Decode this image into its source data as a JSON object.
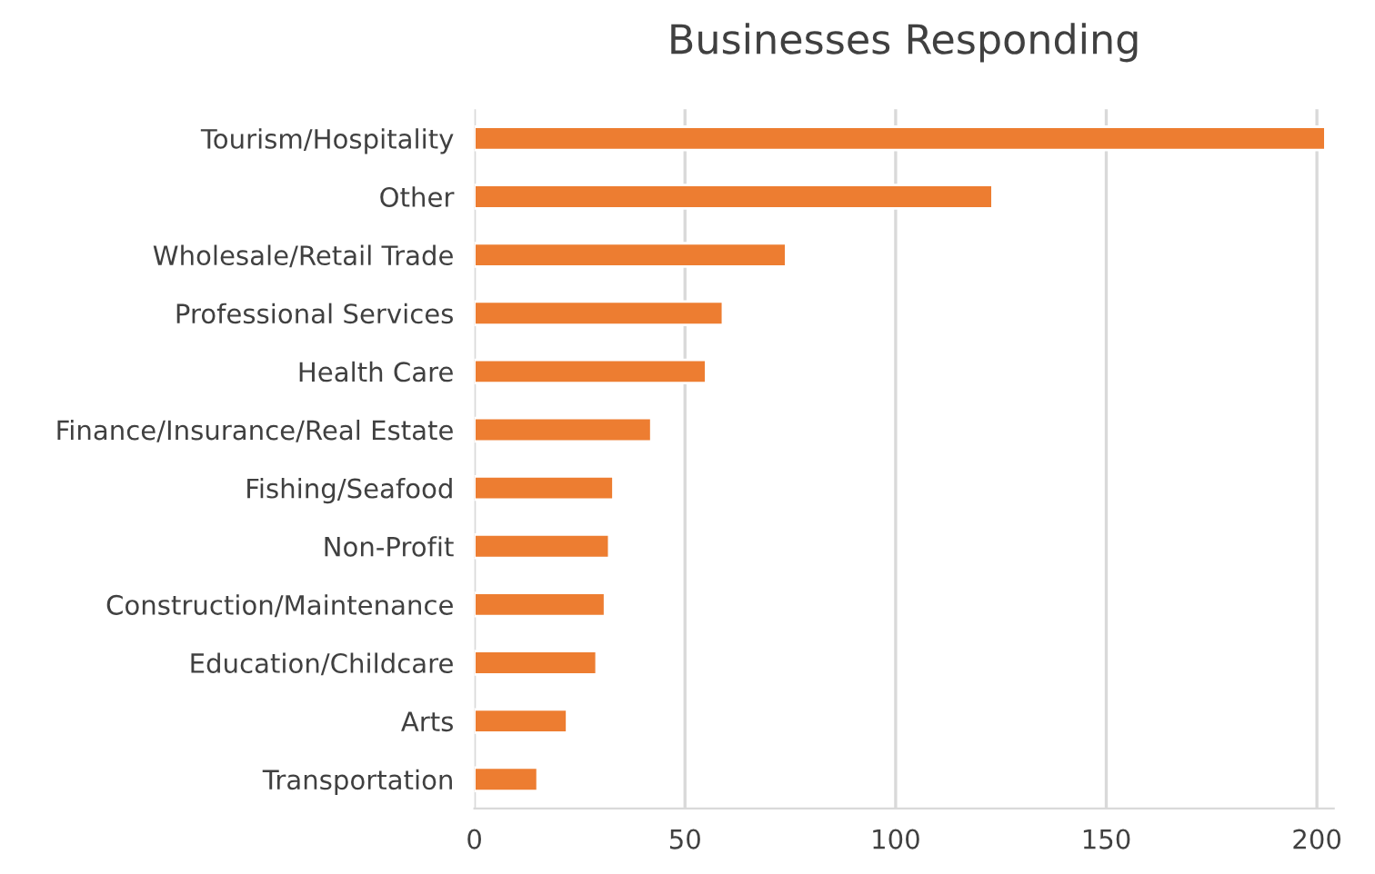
{
  "chart_data": {
    "type": "bar",
    "orientation": "horizontal",
    "title": "Businesses Responding",
    "categories": [
      "Tourism/Hospitality",
      "Other",
      "Wholesale/Retail Trade",
      "Professional Services",
      "Health Care",
      "Finance/Insurance/Real Estate",
      "Fishing/Seafood",
      "Non-Profit",
      "Construction/Maintenance",
      "Education/Childcare",
      "Arts",
      "Transportation"
    ],
    "values": [
      202,
      123,
      74,
      59,
      55,
      42,
      33,
      32,
      31,
      29,
      22,
      15
    ],
    "color": "#ed7d31",
    "xlim": [
      0,
      204
    ],
    "xticks": [
      0,
      50,
      100,
      150,
      200
    ],
    "grid": "x"
  }
}
